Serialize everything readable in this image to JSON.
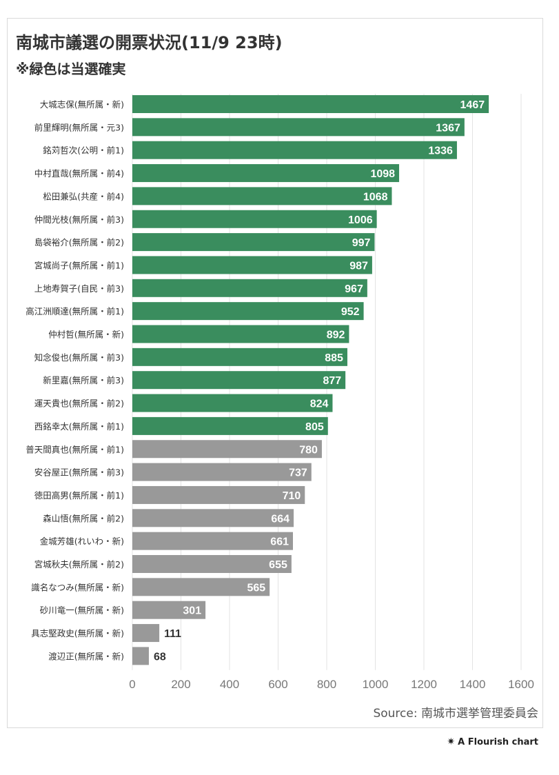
{
  "header": {
    "title": "南城市議選の開票状況(11/9 23時)",
    "subtitle": "※緑色は当選確実"
  },
  "footer": {
    "source": "Source: 南城市選挙管理委員会",
    "credit_mark": "✷",
    "credit": "A Flourish chart"
  },
  "colors": {
    "elected": "#3a8d5e",
    "not_elected": "#999999",
    "grid": "#e3e3e3",
    "axis_text": "#777777",
    "label_text": "#333333"
  },
  "chart_data": {
    "type": "bar",
    "orientation": "horizontal",
    "xlim": [
      0,
      1600
    ],
    "xticks": [
      0,
      200,
      400,
      600,
      800,
      1000,
      1200,
      1400,
      1600
    ],
    "grid": true,
    "legend": "none",
    "categories": [
      "大城志保(無所属・新)",
      "前里輝明(無所属・元3)",
      "銘苅哲次(公明・前1)",
      "中村直哉(無所属・前4)",
      "松田兼弘(共産・前4)",
      "仲間光枝(無所属・前3)",
      "島袋裕介(無所属・前2)",
      "宮城尚子(無所属・前1)",
      "上地寿賀子(自民・前3)",
      "高江洲順達(無所属・前1)",
      "仲村哲(無所属・新)",
      "知念俊也(無所属・前3)",
      "新里嘉(無所属・前3)",
      "運天貴也(無所属・前2)",
      "西銘幸太(無所属・前1)",
      "普天間真也(無所属・前1)",
      "安谷屋正(無所属・前3)",
      "徳田高男(無所属・前1)",
      "森山悟(無所属・前2)",
      "金城芳雄(れいわ・新)",
      "宮城秋夫(無所属・前2)",
      "識名なつみ(無所属・新)",
      "砂川竜一(無所属・新)",
      "具志堅政史(無所属・新)",
      "渡辺正(無所属・新)"
    ],
    "values": [
      1467,
      1367,
      1336,
      1098,
      1068,
      1006,
      997,
      987,
      967,
      952,
      892,
      885,
      877,
      824,
      805,
      780,
      737,
      710,
      664,
      661,
      655,
      565,
      301,
      111,
      68
    ],
    "elected": [
      true,
      true,
      true,
      true,
      true,
      true,
      true,
      true,
      true,
      true,
      true,
      true,
      true,
      true,
      true,
      false,
      false,
      false,
      false,
      false,
      false,
      false,
      false,
      false,
      false
    ]
  }
}
